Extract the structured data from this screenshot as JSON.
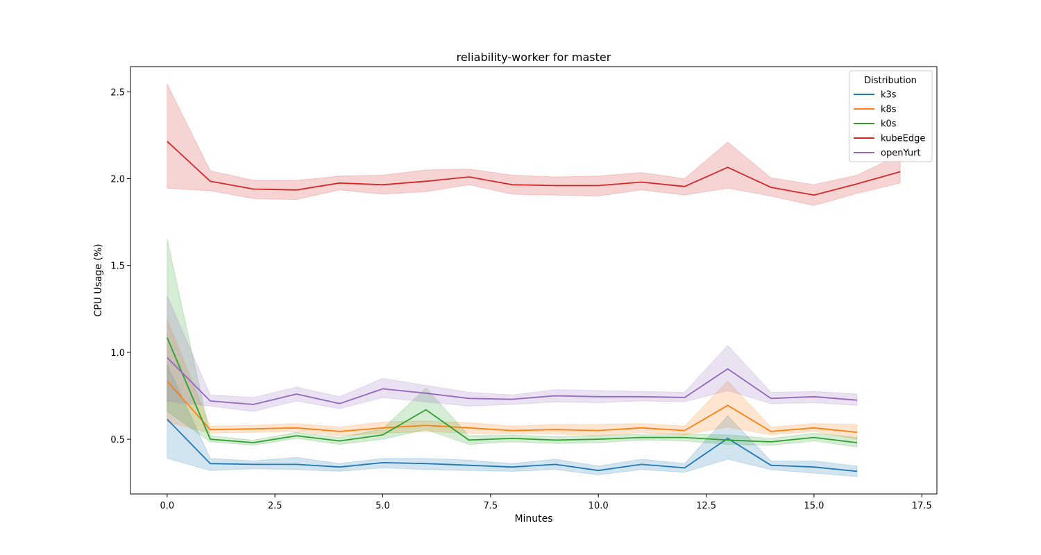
{
  "chart_data": {
    "type": "line",
    "title": "reliability-worker for master",
    "xlabel": "Minutes",
    "ylabel": "CPU Usage (%)",
    "xlim": [
      -0.85,
      17.85
    ],
    "ylim": [
      0.185,
      2.645
    ],
    "xticks": [
      0.0,
      2.5,
      5.0,
      7.5,
      10.0,
      12.5,
      15.0,
      17.5
    ],
    "xtick_labels": [
      "0.0",
      "2.5",
      "5.0",
      "7.5",
      "10.0",
      "12.5",
      "15.0",
      "17.5"
    ],
    "yticks": [
      0.5,
      1.0,
      1.5,
      2.0,
      2.5
    ],
    "ytick_labels": [
      "0.5",
      "1.0",
      "1.5",
      "2.0",
      "2.5"
    ],
    "grid": false,
    "legend": {
      "title": "Distribution",
      "position": "top-right"
    },
    "series": [
      {
        "name": "k3s",
        "color": "#1f77b4",
        "x": [
          0,
          1,
          2,
          3,
          4,
          5,
          6,
          7,
          8,
          9,
          10,
          11,
          12,
          13,
          14,
          15,
          16
        ],
        "y": [
          0.615,
          0.36,
          0.355,
          0.355,
          0.34,
          0.365,
          0.36,
          0.35,
          0.34,
          0.355,
          0.32,
          0.355,
          0.335,
          0.505,
          0.35,
          0.34,
          0.315
        ],
        "lower": [
          0.39,
          0.32,
          0.33,
          0.325,
          0.315,
          0.335,
          0.325,
          0.32,
          0.315,
          0.325,
          0.295,
          0.325,
          0.31,
          0.385,
          0.325,
          0.305,
          0.285
        ],
        "upper": [
          0.93,
          0.39,
          0.375,
          0.395,
          0.36,
          0.39,
          0.39,
          0.38,
          0.36,
          0.385,
          0.345,
          0.385,
          0.36,
          0.635,
          0.375,
          0.375,
          0.345
        ]
      },
      {
        "name": "k8s",
        "color": "#ff7f0e",
        "x": [
          0,
          1,
          2,
          3,
          4,
          5,
          6,
          7,
          8,
          9,
          10,
          11,
          12,
          13,
          14,
          15,
          16
        ],
        "y": [
          0.835,
          0.555,
          0.56,
          0.565,
          0.545,
          0.565,
          0.58,
          0.565,
          0.55,
          0.555,
          0.55,
          0.565,
          0.55,
          0.695,
          0.545,
          0.565,
          0.54
        ],
        "lower": [
          0.6,
          0.535,
          0.54,
          0.545,
          0.52,
          0.535,
          0.545,
          0.535,
          0.53,
          0.53,
          0.52,
          0.54,
          0.525,
          0.57,
          0.525,
          0.545,
          0.5
        ],
        "upper": [
          1.19,
          0.575,
          0.58,
          0.59,
          0.57,
          0.6,
          0.605,
          0.595,
          0.575,
          0.585,
          0.585,
          0.59,
          0.575,
          0.835,
          0.57,
          0.59,
          0.585
        ]
      },
      {
        "name": "k0s",
        "color": "#2ca02c",
        "x": [
          0,
          1,
          2,
          3,
          4,
          5,
          6,
          7,
          8,
          9,
          10,
          11,
          12,
          13,
          14,
          15,
          16
        ],
        "y": [
          1.085,
          0.5,
          0.48,
          0.52,
          0.49,
          0.525,
          0.67,
          0.495,
          0.505,
          0.495,
          0.5,
          0.51,
          0.51,
          0.495,
          0.485,
          0.51,
          0.48
        ],
        "lower": [
          0.66,
          0.485,
          0.465,
          0.505,
          0.47,
          0.5,
          0.555,
          0.47,
          0.485,
          0.475,
          0.48,
          0.495,
          0.49,
          0.47,
          0.465,
          0.49,
          0.455
        ],
        "upper": [
          1.655,
          0.52,
          0.495,
          0.54,
          0.51,
          0.56,
          0.795,
          0.52,
          0.525,
          0.515,
          0.52,
          0.53,
          0.53,
          0.525,
          0.505,
          0.535,
          0.51
        ]
      },
      {
        "name": "kubeEdge",
        "color": "#d62728",
        "x": [
          0,
          1,
          2,
          3,
          4,
          5,
          6,
          7,
          8,
          9,
          10,
          11,
          12,
          13,
          14,
          15,
          16,
          17
        ],
        "y": [
          2.215,
          1.985,
          1.94,
          1.935,
          1.975,
          1.965,
          1.985,
          2.01,
          1.965,
          1.96,
          1.96,
          1.98,
          1.955,
          2.065,
          1.95,
          1.905,
          1.97,
          2.04
        ],
        "lower": [
          1.945,
          1.93,
          1.885,
          1.88,
          1.935,
          1.91,
          1.925,
          1.965,
          1.91,
          1.905,
          1.9,
          1.935,
          1.905,
          1.945,
          1.9,
          1.845,
          1.915,
          1.975
        ],
        "upper": [
          2.545,
          2.045,
          1.99,
          1.99,
          2.015,
          2.02,
          2.05,
          2.055,
          2.02,
          2.01,
          2.015,
          2.035,
          2.0,
          2.21,
          2.005,
          1.965,
          2.02,
          2.14
        ]
      },
      {
        "name": "openYurt",
        "color": "#9467bd",
        "x": [
          0,
          1,
          2,
          3,
          4,
          5,
          6,
          7,
          8,
          9,
          10,
          11,
          12,
          13,
          14,
          15,
          16
        ],
        "y": [
          0.97,
          0.72,
          0.7,
          0.76,
          0.705,
          0.79,
          0.765,
          0.735,
          0.73,
          0.75,
          0.745,
          0.745,
          0.74,
          0.905,
          0.735,
          0.745,
          0.725
        ],
        "lower": [
          0.72,
          0.69,
          0.66,
          0.72,
          0.675,
          0.74,
          0.715,
          0.69,
          0.7,
          0.715,
          0.71,
          0.72,
          0.715,
          0.78,
          0.705,
          0.71,
          0.695
        ],
        "upper": [
          1.325,
          0.755,
          0.74,
          0.8,
          0.745,
          0.85,
          0.81,
          0.77,
          0.755,
          0.785,
          0.78,
          0.775,
          0.77,
          1.04,
          0.77,
          0.775,
          0.76
        ]
      }
    ]
  }
}
